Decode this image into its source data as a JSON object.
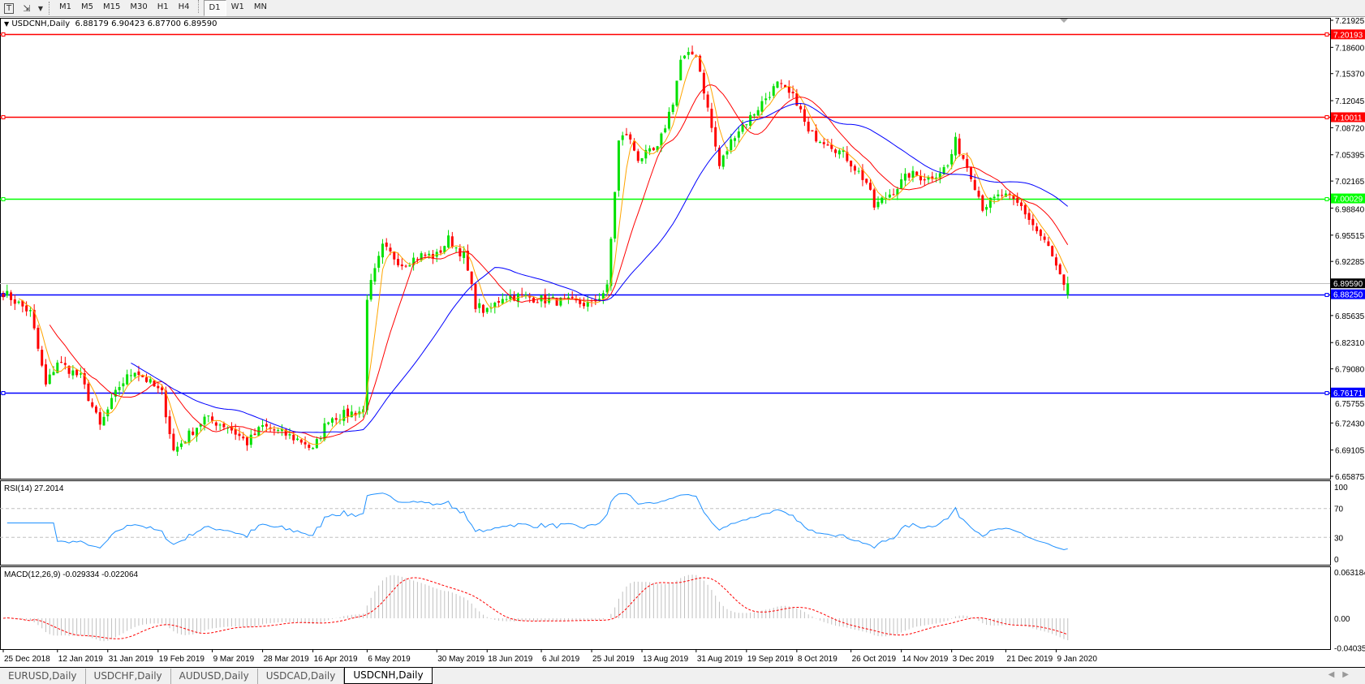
{
  "toolbar": {
    "icons": [
      "text-tool-icon",
      "objects-arrow-icon",
      "dropdown-icon"
    ],
    "timeframes": [
      "M1",
      "M5",
      "M15",
      "M30",
      "H1",
      "H4",
      "D1",
      "W1",
      "MN"
    ],
    "active_timeframe": "D1"
  },
  "chart_header": {
    "arrow": "▼",
    "symbol": "USDCNH,Daily",
    "ohlc": "6.88179 6.90423 6.87700 6.89590"
  },
  "tabs": [
    "EURUSD,Daily",
    "USDCHF,Daily",
    "AUDUSD,Daily",
    "USDCAD,Daily",
    "USDCNH,Daily"
  ],
  "active_tab": "USDCNH,Daily",
  "scroll_arrows": [
    "◀",
    "▶"
  ],
  "chart_data": {
    "type": "candlestick",
    "symbol": "USDCNH",
    "timeframe": "Daily",
    "last_bar": {
      "open": 6.88179,
      "high": 6.90423,
      "low": 6.877,
      "close": 6.8959
    },
    "colors": {
      "bull": "#00e000",
      "bear": "#ff0000",
      "ma_fast": "#ffa500",
      "ma_mid": "#ff0000",
      "ma_slow": "#0000ff",
      "rsi": "#1e90ff",
      "macd_hist": "#c0c0c0",
      "macd_signal": "#ff0000"
    },
    "price_axis": {
      "range": [
        6.65875,
        7.21925
      ],
      "ticks": [
        "7.21925",
        "7.18600",
        "7.15370",
        "7.12045",
        "7.08720",
        "7.05395",
        "7.02165",
        "6.98840",
        "6.95515",
        "6.92285",
        "6.85635",
        "6.82310",
        "6.79080",
        "6.75755",
        "6.72430",
        "6.69105",
        "6.65875"
      ],
      "current_price": "6.89590"
    },
    "horizontal_lines": [
      {
        "value": "7.20193",
        "color": "#ff0000"
      },
      {
        "value": "7.10011",
        "color": "#ff0000"
      },
      {
        "value": "7.00029",
        "color": "#00ff00"
      },
      {
        "value": "6.88250",
        "color": "#0000ff"
      },
      {
        "value": "6.76171",
        "color": "#0000ff"
      }
    ],
    "date_ticks": [
      "25 Dec 2018",
      "12 Jan 2019",
      "31 Jan 2019",
      "19 Feb 2019",
      "9 Mar 2019",
      "28 Mar 2019",
      "16 Apr 2019",
      "6 May 2019",
      "30 May 2019",
      "18 Jun 2019",
      "6 Jul 2019",
      "25 Jul 2019",
      "13 Aug 2019",
      "31 Aug 2019",
      "19 Sep 2019",
      "8 Oct 2019",
      "26 Oct 2019",
      "14 Nov 2019",
      "3 Dec 2019",
      "21 Dec 2019",
      "9 Jan 2020"
    ],
    "closes": [
      [
        "2018-12-25",
        6.885
      ],
      [
        "2019-01-03",
        6.86
      ],
      [
        "2019-01-09",
        6.77
      ],
      [
        "2019-01-14",
        6.8
      ],
      [
        "2019-01-22",
        6.78
      ],
      [
        "2019-01-29",
        6.72
      ],
      [
        "2019-02-05",
        6.77
      ],
      [
        "2019-02-11",
        6.79
      ],
      [
        "2019-02-20",
        6.76
      ],
      [
        "2019-02-25",
        6.69
      ],
      [
        "2019-03-01",
        6.71
      ],
      [
        "2019-03-07",
        6.73
      ],
      [
        "2019-03-15",
        6.72
      ],
      [
        "2019-03-22",
        6.7
      ],
      [
        "2019-03-28",
        6.72
      ],
      [
        "2019-04-05",
        6.71
      ],
      [
        "2019-04-12",
        6.7
      ],
      [
        "2019-04-16",
        6.69
      ],
      [
        "2019-04-22",
        6.73
      ],
      [
        "2019-05-03",
        6.74
      ],
      [
        "2019-05-06",
        6.88
      ],
      [
        "2019-05-10",
        6.94
      ],
      [
        "2019-05-17",
        6.92
      ],
      [
        "2019-05-24",
        6.93
      ],
      [
        "2019-05-30",
        6.93
      ],
      [
        "2019-06-04",
        6.95
      ],
      [
        "2019-06-10",
        6.93
      ],
      [
        "2019-06-13",
        6.87
      ],
      [
        "2019-06-18",
        6.86
      ],
      [
        "2019-06-24",
        6.88
      ],
      [
        "2019-07-01",
        6.88
      ],
      [
        "2019-07-10",
        6.875
      ],
      [
        "2019-07-25",
        6.87
      ],
      [
        "2019-07-31",
        6.89
      ],
      [
        "2019-08-05",
        7.07
      ],
      [
        "2019-08-07",
        7.08
      ],
      [
        "2019-08-12",
        7.05
      ],
      [
        "2019-08-19",
        7.06
      ],
      [
        "2019-08-23",
        7.12
      ],
      [
        "2019-08-27",
        7.17
      ],
      [
        "2019-09-02",
        7.18
      ],
      [
        "2019-09-05",
        7.11
      ],
      [
        "2019-09-10",
        7.04
      ],
      [
        "2019-09-16",
        7.08
      ],
      [
        "2019-09-20",
        7.1
      ],
      [
        "2019-09-27",
        7.13
      ],
      [
        "2019-10-01",
        7.14
      ],
      [
        "2019-10-08",
        7.12
      ],
      [
        "2019-10-11",
        7.08
      ],
      [
        "2019-10-18",
        7.07
      ],
      [
        "2019-10-25",
        7.05
      ],
      [
        "2019-11-01",
        7.02
      ],
      [
        "2019-11-05",
        6.99
      ],
      [
        "2019-11-12",
        7.01
      ],
      [
        "2019-11-18",
        7.03
      ],
      [
        "2019-11-25",
        7.025
      ],
      [
        "2019-12-02",
        7.04
      ],
      [
        "2019-12-04",
        7.07
      ],
      [
        "2019-12-10",
        7.03
      ],
      [
        "2019-12-13",
        6.99
      ],
      [
        "2019-12-20",
        7.005
      ],
      [
        "2019-12-27",
        6.99
      ],
      [
        "2020-01-02",
        6.96
      ],
      [
        "2020-01-07",
        6.94
      ],
      [
        "2020-01-13",
        6.89
      ],
      [
        "2020-01-14",
        6.8959
      ]
    ],
    "rsi": {
      "label": "RSI(14) 27.2014",
      "range": [
        0,
        100
      ],
      "levels": [
        70,
        30
      ],
      "ticks": [
        "100",
        "70",
        "30",
        "0"
      ]
    },
    "macd": {
      "label": "MACD(12,26,9) -0.029334 -0.022064",
      "range": [
        -0.040355,
        0.063184
      ],
      "ticks": [
        "0.063184",
        "0.00",
        "-0.040355"
      ]
    }
  }
}
